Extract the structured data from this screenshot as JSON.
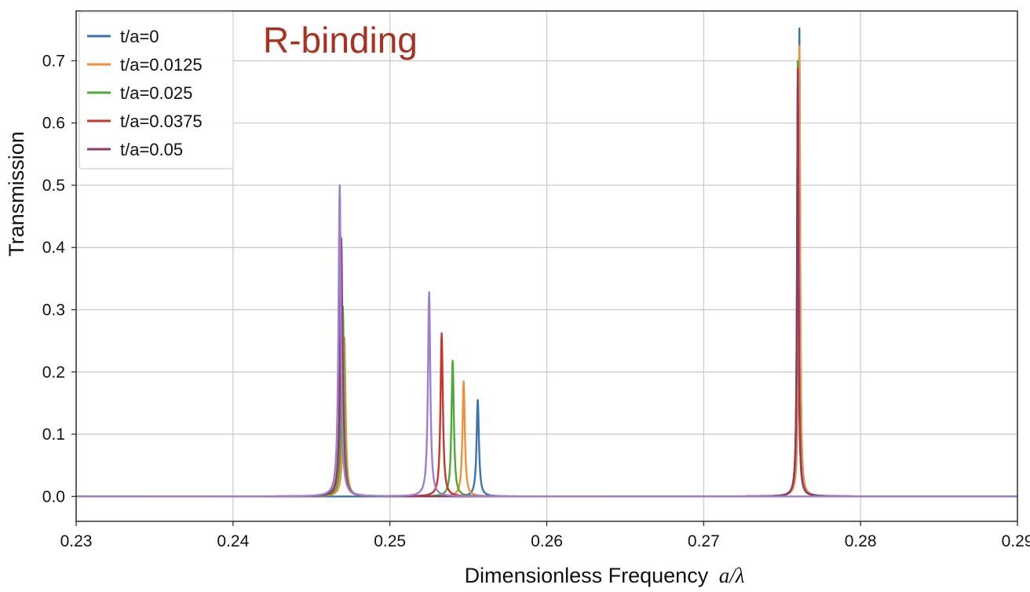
{
  "chart_data": {
    "type": "line",
    "title": "",
    "annotation": {
      "text": "R-binding",
      "color": "#a8321f"
    },
    "xlabel": "Dimensionless Frequency",
    "xlabel_math": "a/λ",
    "ylabel": "Transmission",
    "xlim": [
      0.23,
      0.29
    ],
    "ylim": [
      -0.04,
      0.78
    ],
    "xticks": [
      0.23,
      0.24,
      0.25,
      0.26,
      0.27,
      0.28,
      0.29
    ],
    "xtick_labels": [
      "0.23",
      "0.24",
      "0.25",
      "0.26",
      "0.27",
      "0.28",
      "0.29"
    ],
    "yticks": [
      0.0,
      0.1,
      0.2,
      0.3,
      0.4,
      0.5,
      0.6,
      0.7
    ],
    "ytick_labels": [
      "0.0",
      "0.1",
      "0.2",
      "0.3",
      "0.4",
      "0.5",
      "0.6",
      "0.7"
    ],
    "grid": true,
    "legend_position": "top-left",
    "series": [
      {
        "name": "t/a=0",
        "color": "#3a75b0",
        "peaks": [
          [
            0.2471,
            0.0
          ],
          [
            0.2556,
            0.155
          ],
          [
            0.2761,
            0.752
          ]
        ]
      },
      {
        "name": "t/a=0.0125",
        "color": "#f0913a",
        "peaks": [
          [
            0.2471,
            0.255
          ],
          [
            0.2547,
            0.185
          ],
          [
            0.2761,
            0.724
          ]
        ]
      },
      {
        "name": "t/a=0.025",
        "color": "#4ea83a",
        "peaks": [
          [
            0.247,
            0.305
          ],
          [
            0.254,
            0.218
          ],
          [
            0.276,
            0.7
          ]
        ]
      },
      {
        "name": "t/a=0.0375",
        "color": "#c8372d",
        "peaks": [
          [
            0.2469,
            0.355
          ],
          [
            0.2533,
            0.262
          ],
          [
            0.276,
            0.688
          ]
        ]
      },
      {
        "name": "t/a=0.05",
        "color": "#8e3a6a",
        "peaks": [
          [
            0.2469,
            0.415
          ],
          [
            0.276,
            0.68
          ]
        ]
      },
      {
        "name": "",
        "color": "#9b7fd0",
        "legend": false,
        "peaks": [
          [
            0.2468,
            0.5
          ],
          [
            0.2525,
            0.328
          ]
        ]
      }
    ]
  }
}
